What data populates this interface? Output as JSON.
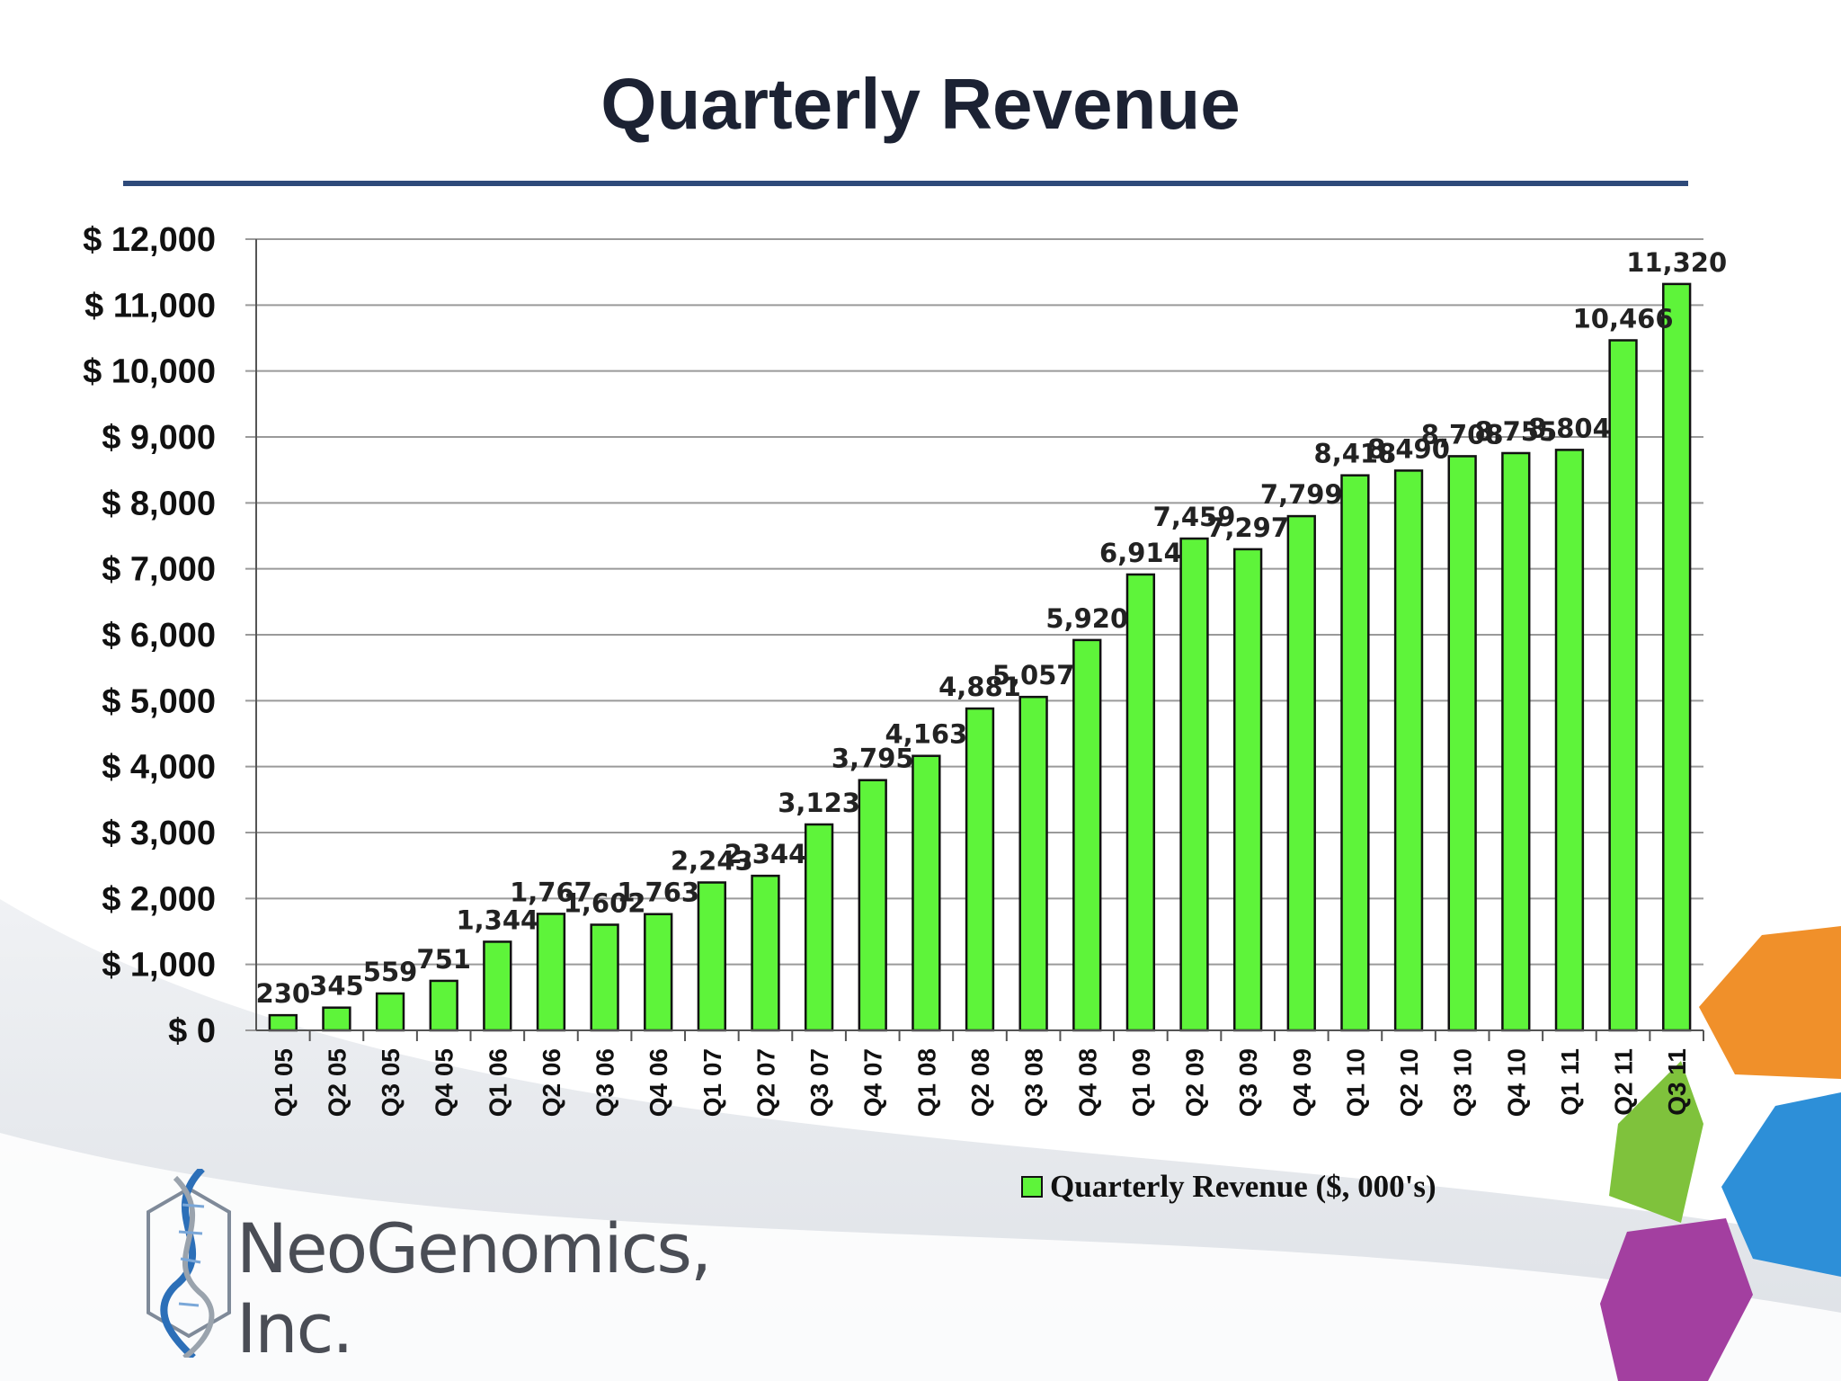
{
  "chart_data": {
    "type": "bar",
    "title": "Quarterly Revenue",
    "xlabel": "",
    "ylabel": "",
    "ylim": [
      0,
      12000
    ],
    "yticks": [
      0,
      1000,
      2000,
      3000,
      4000,
      5000,
      6000,
      7000,
      8000,
      9000,
      10000,
      11000,
      12000
    ],
    "ytick_labels": [
      "$ 0",
      "$ 1,000",
      "$ 2,000",
      "$ 3,000",
      "$ 4,000",
      "$ 5,000",
      "$ 6,000",
      "$ 7,000",
      "$ 8,000",
      "$ 9,000",
      "$ 10,000",
      "$ 11,000",
      "$ 12,000"
    ],
    "grid": true,
    "legend_position": "bottom-right",
    "categories": [
      "Q1 05",
      "Q2 05",
      "Q3 05",
      "Q4 05",
      "Q1 06",
      "Q2 06",
      "Q3 06",
      "Q4 06",
      "Q1 07",
      "Q2 07",
      "Q3 07",
      "Q4 07",
      "Q1 08",
      "Q2 08",
      "Q3 08",
      "Q4 08",
      "Q1 09",
      "Q2 09",
      "Q3 09",
      "Q4 09",
      "Q1 10",
      "Q2 10",
      "Q3 10",
      "Q4 10",
      "Q1 11",
      "Q2 11",
      "Q3 11"
    ],
    "series": [
      {
        "name": "Quarterly Revenue ($, 000's)",
        "color": "#5ef43a",
        "values": [
          230,
          345,
          559,
          751,
          1344,
          1767,
          1602,
          1763,
          2243,
          2344,
          3123,
          3795,
          4163,
          4881,
          5057,
          5920,
          6914,
          7459,
          7297,
          7799,
          8418,
          8490,
          8708,
          8755,
          8804,
          10466,
          11320
        ],
        "data_labels": [
          "230",
          "345",
          "559",
          "751",
          "1,344",
          "1,767",
          "1,602",
          "1,763",
          "2,243",
          "2,344",
          "3,123",
          "3,795",
          "4,163",
          "4,881",
          "5,057",
          "5,920",
          "6,914",
          "7,459",
          "7,297",
          "7,799",
          "8,418",
          "8,490",
          "8,708",
          "8,755",
          "8,804",
          "10,466",
          "11,320"
        ]
      }
    ]
  },
  "logo": {
    "text": "NeoGenomics, Inc."
  },
  "colors": {
    "bar": "#5ef43a",
    "title_rule": "#2e4a7a",
    "gridline": "#9a9a9a"
  }
}
